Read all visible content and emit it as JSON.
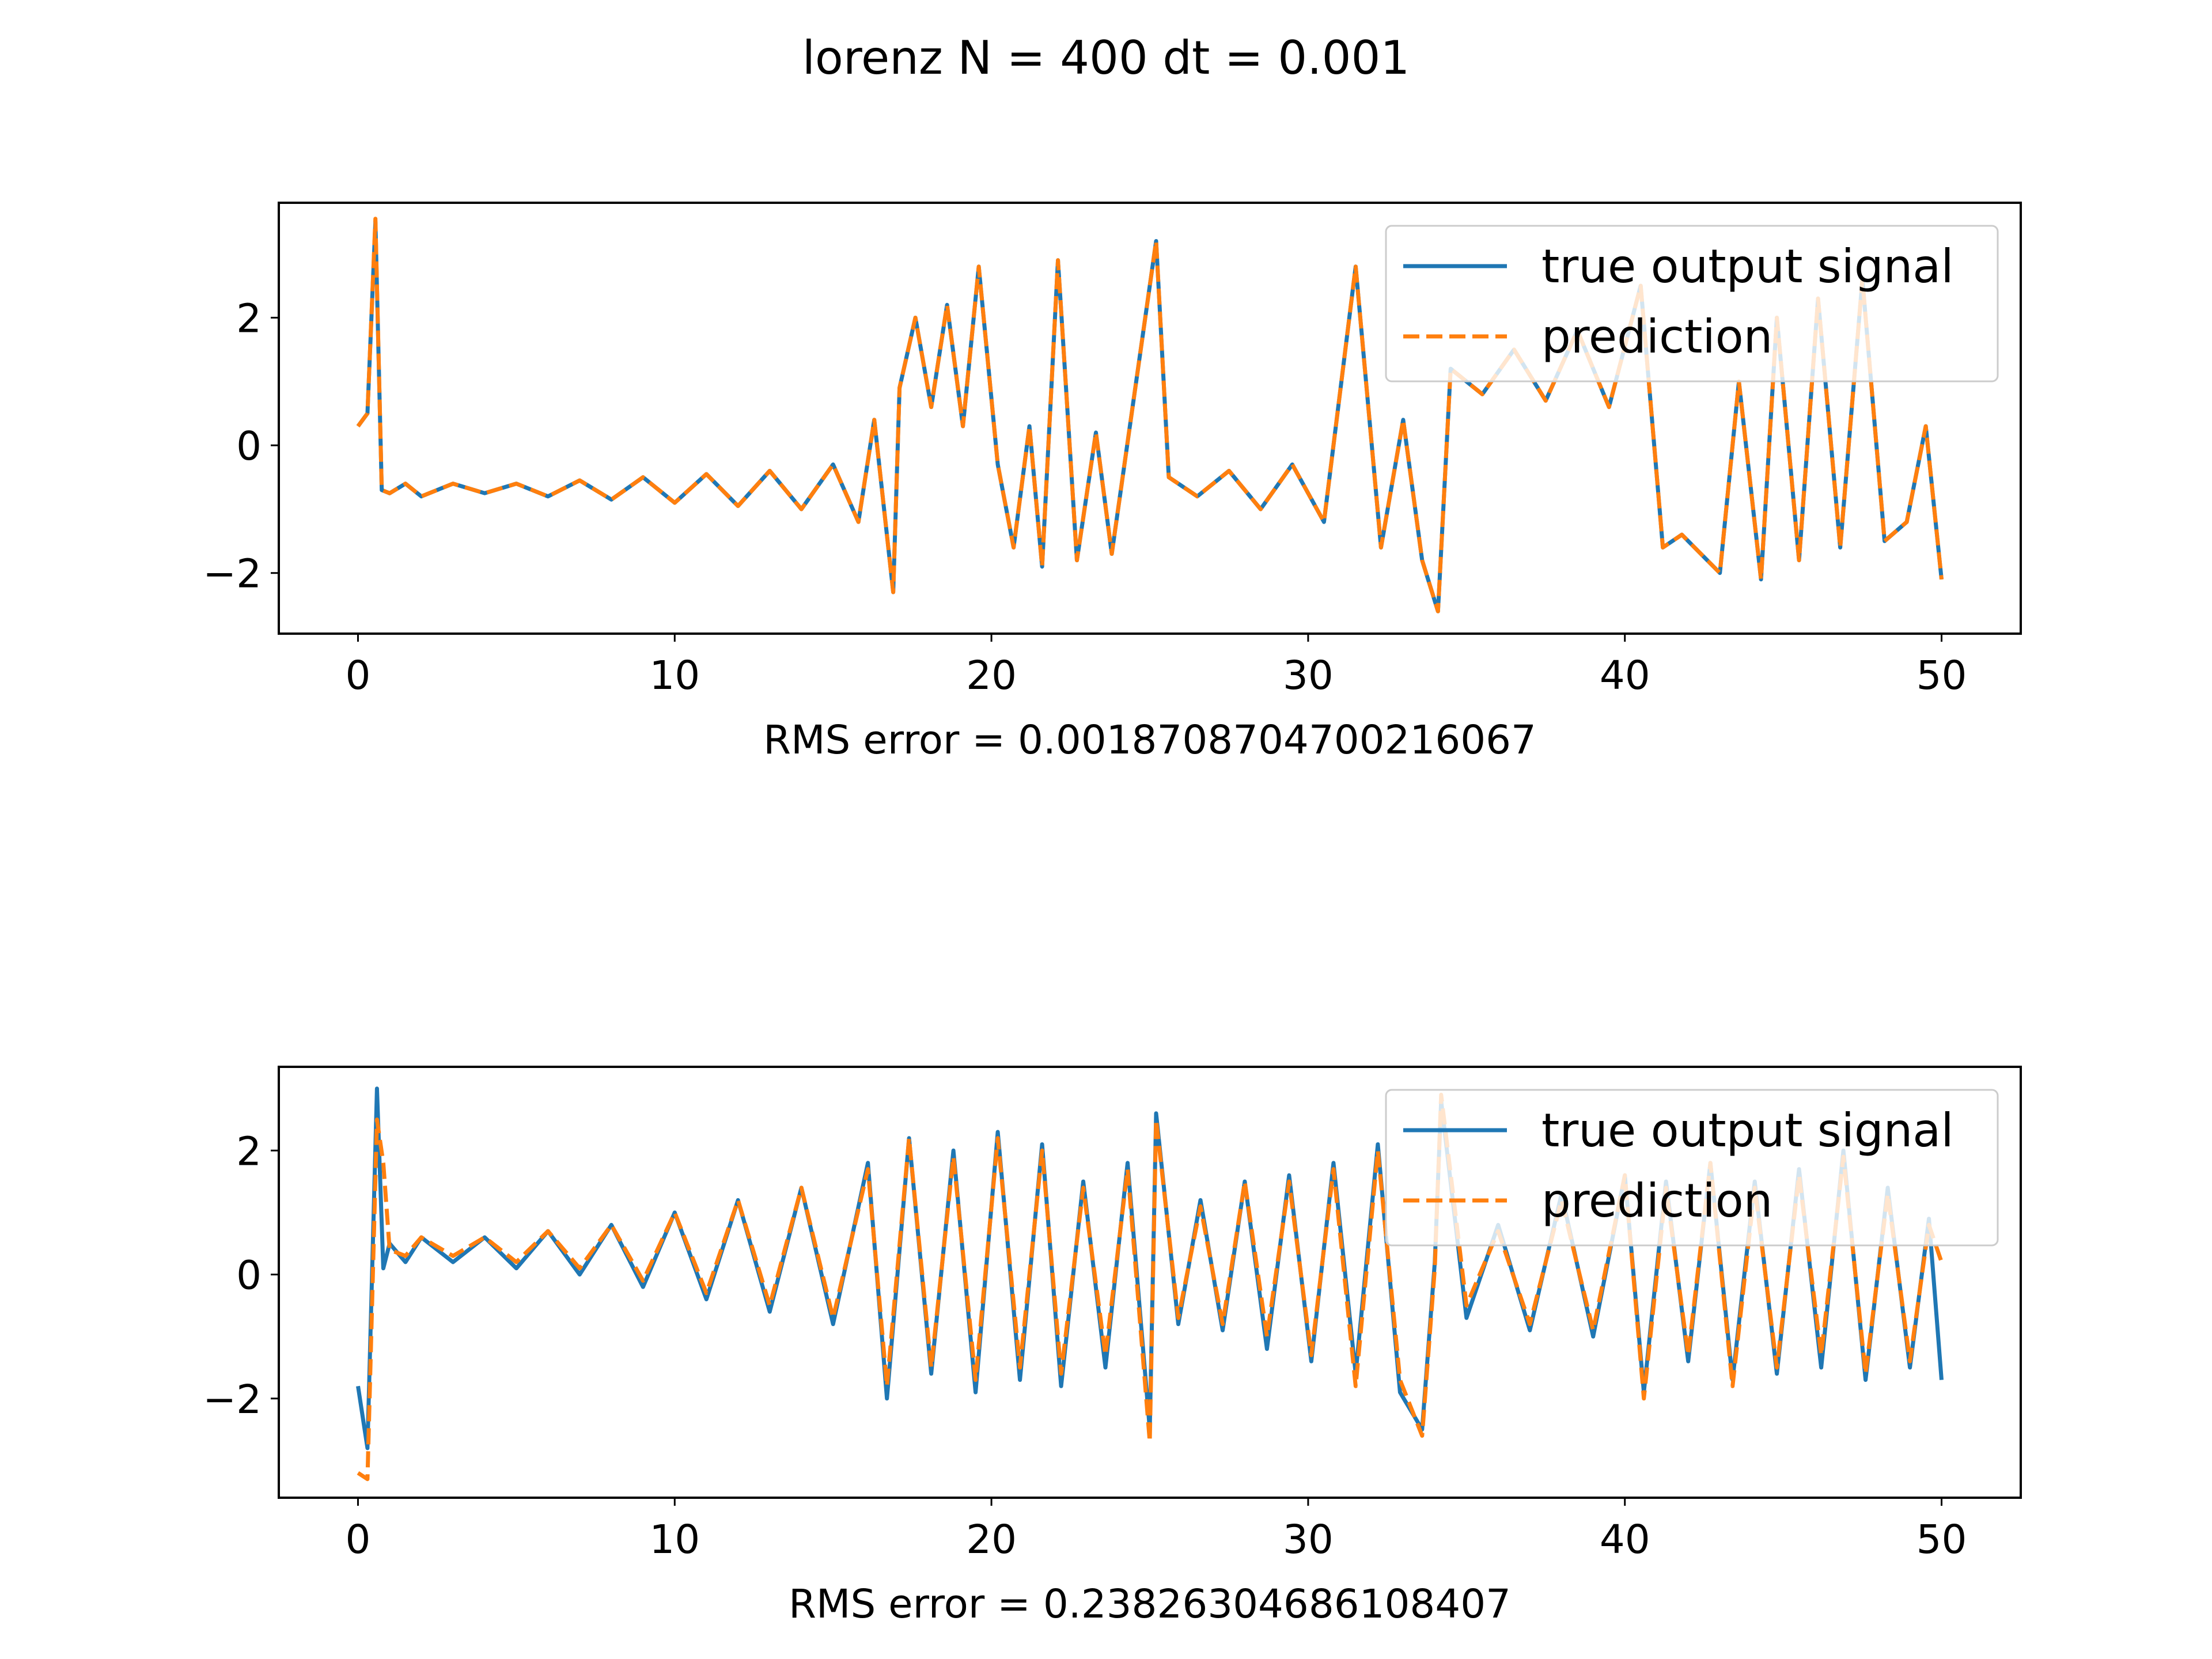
{
  "figure": {
    "title": "lorenz N = 400 dt = 0.001"
  },
  "chart_data": [
    {
      "type": "line",
      "title": "",
      "xlabel": "RMS error = 0.0018708704700216067",
      "ylabel": "",
      "xlim": [
        -2.5,
        52.5
      ],
      "ylim": [
        -2.95,
        3.8
      ],
      "xticks": [
        0,
        10,
        20,
        30,
        40,
        50
      ],
      "yticks": [
        -2,
        0,
        2
      ],
      "grid": false,
      "legend_position": "top-right",
      "colors": {
        "true": "#1f77b4",
        "prediction": "#ff7f0e"
      },
      "series": [
        {
          "name": "true output signal",
          "style": "solid",
          "x": [
            0,
            0.3,
            0.55,
            0.75,
            1,
            1.5,
            2,
            3,
            4,
            5,
            6,
            7,
            8,
            9,
            10,
            11,
            12,
            13,
            14,
            15,
            15.8,
            16.3,
            16.9,
            17.1,
            17.6,
            18.1,
            18.6,
            19.1,
            19.6,
            20.2,
            20.7,
            21.2,
            21.6,
            22.1,
            22.7,
            23.3,
            23.8,
            24.4,
            25.2,
            25.6,
            26.5,
            27.5,
            28.5,
            29.5,
            30.5,
            31.5,
            32.3,
            33.0,
            33.6,
            34.1,
            34.5,
            35.5,
            36.5,
            37.5,
            38.5,
            39.5,
            40.5,
            41.2,
            41.8,
            42.4,
            43.0,
            43.6,
            44.3,
            44.8,
            45.5,
            46.1,
            46.8,
            47.5,
            48.2,
            48.9,
            49.5,
            50
          ],
          "y": [
            0.3,
            0.5,
            3.5,
            -0.7,
            -0.75,
            -0.6,
            -0.8,
            -0.6,
            -0.75,
            -0.6,
            -0.8,
            -0.55,
            -0.85,
            -0.5,
            -0.9,
            -0.45,
            -0.95,
            -0.4,
            -1.0,
            -0.3,
            -1.2,
            0.4,
            -2.3,
            0.9,
            2.0,
            0.6,
            2.2,
            0.3,
            2.8,
            -0.3,
            -1.6,
            0.3,
            -1.9,
            2.9,
            -1.8,
            0.2,
            -1.7,
            0.4,
            3.2,
            -0.5,
            -0.8,
            -0.4,
            -1.0,
            -0.3,
            -1.2,
            2.8,
            -1.6,
            0.4,
            -1.8,
            -2.6,
            1.2,
            0.8,
            1.5,
            0.7,
            1.8,
            0.6,
            2.5,
            -1.6,
            -1.4,
            -1.7,
            -2.0,
            1.0,
            -2.1,
            2.0,
            -1.8,
            2.3,
            -1.6,
            2.6,
            -1.5,
            -1.2,
            0.3,
            -2.1
          ]
        },
        {
          "name": "prediction",
          "style": "dashed",
          "x": [
            0,
            0.3,
            0.55,
            0.75,
            1,
            1.5,
            2,
            3,
            4,
            5,
            6,
            7,
            8,
            9,
            10,
            11,
            12,
            13,
            14,
            15,
            15.8,
            16.3,
            16.9,
            17.1,
            17.6,
            18.1,
            18.6,
            19.1,
            19.6,
            20.2,
            20.7,
            21.2,
            21.6,
            22.1,
            22.7,
            23.3,
            23.8,
            24.4,
            25.2,
            25.6,
            26.5,
            27.5,
            28.5,
            29.5,
            30.5,
            31.5,
            32.3,
            33.0,
            33.6,
            34.1,
            34.5,
            35.5,
            36.5,
            37.5,
            38.5,
            39.5,
            40.5,
            41.2,
            41.8,
            42.4,
            43.0,
            43.6,
            44.3,
            44.8,
            45.5,
            46.1,
            46.8,
            47.5,
            48.2,
            48.9,
            49.5,
            50
          ],
          "y": [
            0.3,
            0.5,
            3.55,
            -0.7,
            -0.75,
            -0.6,
            -0.8,
            -0.6,
            -0.75,
            -0.6,
            -0.8,
            -0.55,
            -0.85,
            -0.5,
            -0.9,
            -0.45,
            -0.95,
            -0.4,
            -1.0,
            -0.3,
            -1.2,
            0.4,
            -2.3,
            0.9,
            2.0,
            0.6,
            2.2,
            0.3,
            2.8,
            -0.3,
            -1.6,
            0.3,
            -1.9,
            2.9,
            -1.8,
            0.2,
            -1.7,
            0.4,
            3.2,
            -0.5,
            -0.8,
            -0.4,
            -1.0,
            -0.3,
            -1.2,
            2.8,
            -1.6,
            0.4,
            -1.8,
            -2.6,
            1.2,
            0.8,
            1.5,
            0.7,
            1.8,
            0.6,
            2.5,
            -1.6,
            -1.4,
            -1.7,
            -2.0,
            1.0,
            -2.1,
            2.0,
            -1.8,
            2.3,
            -1.6,
            2.6,
            -1.5,
            -1.2,
            0.3,
            -2.1
          ]
        }
      ]
    },
    {
      "type": "line",
      "title": "",
      "xlabel": "RMS error = 0.23826304686108407",
      "ylabel": "",
      "xlim": [
        -2.5,
        52.5
      ],
      "ylim": [
        -3.6,
        3.35
      ],
      "xticks": [
        0,
        10,
        20,
        30,
        40,
        50
      ],
      "yticks": [
        -2,
        0,
        2
      ],
      "grid": false,
      "legend_position": "top-right",
      "colors": {
        "true": "#1f77b4",
        "prediction": "#ff7f0e"
      },
      "series": [
        {
          "name": "true output signal",
          "style": "solid",
          "x": [
            0,
            0.3,
            0.6,
            0.8,
            1,
            1.5,
            2,
            3,
            4,
            5,
            6,
            7,
            8,
            9,
            10,
            11,
            12,
            13,
            14,
            15,
            16.1,
            16.7,
            17.4,
            18.1,
            18.8,
            19.5,
            20.2,
            20.9,
            21.6,
            22.2,
            22.9,
            23.6,
            24.3,
            25.0,
            25.2,
            25.9,
            26.6,
            27.3,
            28.0,
            28.7,
            29.4,
            30.1,
            30.8,
            31.5,
            32.2,
            32.9,
            33.6,
            34.0,
            34.2,
            35.0,
            36.0,
            37.0,
            38.0,
            39.0,
            40.0,
            40.6,
            41.3,
            42.0,
            42.7,
            43.4,
            44.1,
            44.8,
            45.5,
            46.2,
            46.9,
            47.6,
            48.3,
            49.0,
            49.6,
            50
          ],
          "y": [
            -1.8,
            -2.8,
            3.0,
            0.1,
            0.5,
            0.2,
            0.6,
            0.2,
            0.6,
            0.1,
            0.7,
            0.0,
            0.8,
            -0.2,
            1.0,
            -0.4,
            1.2,
            -0.6,
            1.4,
            -0.8,
            1.8,
            -2.0,
            2.2,
            -1.6,
            2.0,
            -1.9,
            2.3,
            -1.7,
            2.1,
            -1.8,
            1.5,
            -1.5,
            1.8,
            -2.5,
            2.6,
            -0.8,
            1.2,
            -0.9,
            1.5,
            -1.2,
            1.6,
            -1.4,
            1.8,
            -1.6,
            2.1,
            -1.9,
            -2.5,
            0.2,
            2.8,
            -0.7,
            0.8,
            -0.9,
            1.3,
            -1.0,
            1.6,
            -1.9,
            1.5,
            -1.4,
            1.8,
            -1.7,
            1.5,
            -1.6,
            1.7,
            -1.5,
            2.0,
            -1.7,
            1.4,
            -1.5,
            0.9,
            -1.7
          ]
        },
        {
          "name": "prediction",
          "style": "dashed",
          "x": [
            0,
            0.3,
            0.6,
            0.8,
            1,
            1.5,
            2,
            3,
            4,
            5,
            6,
            7,
            8,
            9,
            10,
            11,
            12,
            13,
            14,
            15,
            16.1,
            16.7,
            17.4,
            18.1,
            18.8,
            19.5,
            20.2,
            20.9,
            21.6,
            22.2,
            22.9,
            23.6,
            24.3,
            25.0,
            25.2,
            25.9,
            26.6,
            27.3,
            28.0,
            28.7,
            29.4,
            30.1,
            30.8,
            31.5,
            32.2,
            32.9,
            33.6,
            34.0,
            34.2,
            35.0,
            36.0,
            37.0,
            38.0,
            39.0,
            40.0,
            40.6,
            41.3,
            42.0,
            42.7,
            43.4,
            44.1,
            44.8,
            45.5,
            46.2,
            46.9,
            47.6,
            48.3,
            49.0,
            49.6,
            50
          ],
          "y": [
            -3.2,
            -3.3,
            2.5,
            1.8,
            0.4,
            0.3,
            0.6,
            0.3,
            0.6,
            0.2,
            0.7,
            0.1,
            0.8,
            -0.1,
            1.0,
            -0.3,
            1.2,
            -0.5,
            1.4,
            -0.7,
            1.7,
            -1.8,
            2.2,
            -1.5,
            1.9,
            -1.7,
            2.2,
            -1.5,
            2.0,
            -1.6,
            1.4,
            -1.3,
            1.7,
            -2.7,
            2.5,
            -0.7,
            1.1,
            -0.8,
            1.5,
            -1.0,
            1.5,
            -1.3,
            1.7,
            -1.8,
            2.0,
            -1.7,
            -2.6,
            0.1,
            2.9,
            -0.5,
            0.7,
            -0.8,
            1.2,
            -0.9,
            1.6,
            -2.0,
            1.4,
            -1.3,
            1.8,
            -1.8,
            1.4,
            -1.5,
            1.6,
            -1.3,
            1.9,
            -1.6,
            1.3,
            -1.4,
            0.8,
            0.2
          ]
        }
      ]
    }
  ]
}
